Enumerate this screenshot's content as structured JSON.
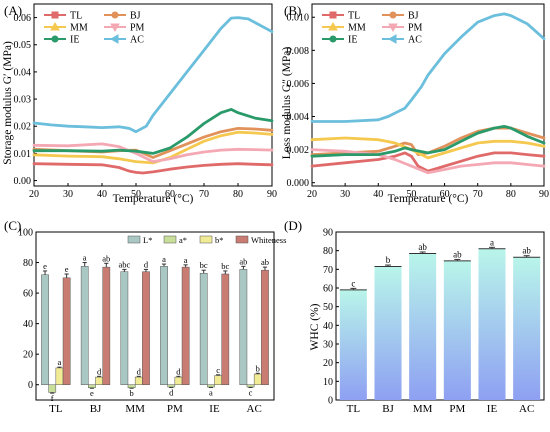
{
  "chart_data": [
    {
      "panel": "(A)",
      "type": "line",
      "xlabel": "Temperature (°C)",
      "ylabel": "Storage modulus G′ (MPa)",
      "xlim": [
        20,
        90
      ],
      "ylim": [
        -0.002,
        0.065
      ],
      "xticks": [
        "20",
        "30",
        "40",
        "50",
        "60",
        "70",
        "80",
        "90"
      ],
      "yticks": [
        "0.00",
        "0.01",
        "0.02",
        "0.03",
        "0.04",
        "0.05",
        "0.06"
      ],
      "legend": {
        "placement": "top-left",
        "columns": 2
      },
      "series": [
        {
          "name": "TL",
          "color": "#e06a6a",
          "marker": "square",
          "x": [
            20,
            30,
            40,
            45,
            48,
            50,
            52,
            55,
            60,
            65,
            70,
            75,
            80,
            85,
            90
          ],
          "y": [
            0.0062,
            0.006,
            0.0058,
            0.0048,
            0.0035,
            0.003,
            0.0028,
            0.0032,
            0.0042,
            0.005,
            0.0056,
            0.006,
            0.0062,
            0.006,
            0.0058
          ]
        },
        {
          "name": "BJ",
          "color": "#e0925a",
          "marker": "circle",
          "x": [
            20,
            30,
            40,
            45,
            50,
            55,
            60,
            65,
            70,
            75,
            80,
            85,
            90
          ],
          "y": [
            0.0115,
            0.011,
            0.0105,
            0.011,
            0.0112,
            0.0085,
            0.011,
            0.0135,
            0.016,
            0.018,
            0.0192,
            0.019,
            0.0185
          ]
        },
        {
          "name": "MM",
          "color": "#f5c84f",
          "marker": "triangle-up",
          "x": [
            20,
            30,
            40,
            45,
            50,
            55,
            60,
            65,
            70,
            75,
            80,
            85,
            90
          ],
          "y": [
            0.0095,
            0.009,
            0.0088,
            0.008,
            0.007,
            0.0065,
            0.0085,
            0.0115,
            0.0145,
            0.0165,
            0.0178,
            0.0175,
            0.017
          ]
        },
        {
          "name": "PM",
          "color": "#f4a8b4",
          "marker": "triangle-down",
          "x": [
            20,
            30,
            40,
            45,
            50,
            55,
            60,
            65,
            70,
            75,
            80,
            85,
            90
          ],
          "y": [
            0.013,
            0.0128,
            0.0135,
            0.0125,
            0.01,
            0.007,
            0.008,
            0.0095,
            0.0105,
            0.0112,
            0.0115,
            0.0114,
            0.0112
          ]
        },
        {
          "name": "IE",
          "color": "#2a9a6a",
          "marker": "circle",
          "x": [
            20,
            30,
            40,
            45,
            50,
            55,
            60,
            65,
            70,
            75,
            78,
            80,
            85,
            90
          ],
          "y": [
            0.011,
            0.011,
            0.0108,
            0.0112,
            0.0108,
            0.01,
            0.012,
            0.016,
            0.021,
            0.025,
            0.0262,
            0.025,
            0.023,
            0.022
          ]
        },
        {
          "name": "AC",
          "color": "#6bbfdc",
          "marker": "triangle-left",
          "x": [
            20,
            25,
            30,
            35,
            40,
            45,
            48,
            50,
            53,
            55,
            60,
            65,
            70,
            75,
            78,
            80,
            83,
            86,
            90
          ],
          "y": [
            0.0212,
            0.0205,
            0.02,
            0.0198,
            0.0195,
            0.0198,
            0.0192,
            0.018,
            0.02,
            0.024,
            0.032,
            0.04,
            0.048,
            0.056,
            0.0598,
            0.06,
            0.0595,
            0.0575,
            0.0548
          ]
        }
      ]
    },
    {
      "panel": "(B)",
      "type": "line",
      "xlabel": "Temperature (°C)",
      "ylabel": "Loss modulus G″ (MPa)",
      "xlim": [
        20,
        90
      ],
      "ylim": [
        -0.0002,
        0.0108
      ],
      "xticks": [
        "20",
        "30",
        "40",
        "50",
        "60",
        "70",
        "80",
        "90"
      ],
      "yticks": [
        "0.000",
        "0.002",
        "0.004",
        "0.006",
        "0.008",
        "0.010"
      ],
      "legend": {
        "placement": "top-left",
        "columns": 2
      },
      "series": [
        {
          "name": "TL",
          "color": "#e06a6a",
          "marker": "square",
          "x": [
            20,
            30,
            40,
            45,
            48,
            50,
            52,
            55,
            60,
            65,
            70,
            75,
            80,
            85,
            90
          ],
          "y": [
            0.001,
            0.0012,
            0.0014,
            0.0016,
            0.0018,
            0.0016,
            0.001,
            0.0007,
            0.001,
            0.0013,
            0.0016,
            0.0018,
            0.0018,
            0.0017,
            0.0016
          ]
        },
        {
          "name": "BJ",
          "color": "#e0925a",
          "marker": "circle",
          "x": [
            20,
            30,
            40,
            45,
            48,
            50,
            52,
            55,
            60,
            65,
            70,
            75,
            80,
            85,
            90
          ],
          "y": [
            0.0017,
            0.0018,
            0.0019,
            0.0022,
            0.0024,
            0.0023,
            0.0017,
            0.0018,
            0.0022,
            0.0027,
            0.0031,
            0.0033,
            0.0033,
            0.003,
            0.0027
          ]
        },
        {
          "name": "MM",
          "color": "#f5c84f",
          "marker": "triangle-up",
          "x": [
            20,
            30,
            40,
            45,
            50,
            55,
            60,
            65,
            70,
            75,
            80,
            85,
            90
          ],
          "y": [
            0.0026,
            0.0027,
            0.0026,
            0.0024,
            0.002,
            0.0015,
            0.0018,
            0.0021,
            0.0024,
            0.0025,
            0.0025,
            0.0024,
            0.0022
          ]
        },
        {
          "name": "PM",
          "color": "#f4a8b4",
          "marker": "triangle-down",
          "x": [
            20,
            30,
            40,
            45,
            50,
            55,
            60,
            65,
            70,
            75,
            80,
            85,
            90
          ],
          "y": [
            0.002,
            0.0019,
            0.0017,
            0.0014,
            0.001,
            0.0006,
            0.0008,
            0.001,
            0.0011,
            0.0012,
            0.0012,
            0.0011,
            0.001
          ]
        },
        {
          "name": "IE",
          "color": "#2a9a6a",
          "marker": "circle",
          "x": [
            20,
            30,
            40,
            45,
            48,
            50,
            55,
            60,
            65,
            70,
            75,
            78,
            80,
            85,
            90
          ],
          "y": [
            0.0016,
            0.0017,
            0.0017,
            0.0019,
            0.0021,
            0.002,
            0.0018,
            0.002,
            0.0025,
            0.003,
            0.0033,
            0.0034,
            0.0033,
            0.0028,
            0.0024
          ]
        },
        {
          "name": "AC",
          "color": "#6bbfdc",
          "marker": "triangle-left",
          "x": [
            20,
            30,
            40,
            43,
            46,
            48,
            50,
            53,
            55,
            60,
            65,
            70,
            75,
            78,
            80,
            85,
            90
          ],
          "y": [
            0.0037,
            0.0037,
            0.0038,
            0.004,
            0.0043,
            0.0045,
            0.005,
            0.0058,
            0.0065,
            0.0078,
            0.0088,
            0.0097,
            0.0101,
            0.0102,
            0.0101,
            0.0096,
            0.0087
          ]
        }
      ]
    },
    {
      "panel": "(C)",
      "type": "bar",
      "categories": [
        "TL",
        "BJ",
        "MM",
        "PM",
        "IE",
        "AC"
      ],
      "ylim": [
        -10,
        100
      ],
      "yticks": [
        "0",
        "20",
        "40",
        "60",
        "80",
        "100"
      ],
      "legend": {
        "placement": "top",
        "columns": 4
      },
      "series": [
        {
          "name": "L*",
          "color": "#a9c8c4",
          "values": [
            72,
            77.5,
            74,
            77.5,
            73,
            75.5
          ],
          "errors": [
            2.5,
            2.5,
            1.5,
            1.5,
            2,
            2
          ],
          "letters": [
            "e",
            "a",
            "abc",
            "a",
            "bc",
            "ab"
          ]
        },
        {
          "name": "a*",
          "color": "#c8df9a",
          "values": [
            -5,
            -2,
            -2,
            -1.5,
            -1.5,
            -1.5
          ],
          "errors": [
            0.5,
            0.3,
            0.3,
            0.3,
            0.3,
            0.3
          ],
          "letters": [
            "f",
            "e",
            "b",
            "d",
            "a",
            "c"
          ]
        },
        {
          "name": "b*",
          "color": "#f1eb95",
          "values": [
            11,
            5,
            5,
            5,
            6,
            7
          ],
          "errors": [
            0.5,
            0.5,
            0.5,
            0.5,
            0.5,
            0.5
          ],
          "letters": [
            "a",
            "d",
            "d",
            "d",
            "c",
            "b"
          ]
        },
        {
          "name": "Whiteness",
          "color": "#c97c71",
          "values": [
            70,
            77,
            74,
            77,
            72.5,
            75
          ],
          "errors": [
            2.5,
            2.5,
            1.5,
            1.5,
            2,
            2
          ],
          "letters": [
            "e",
            "ab",
            "d",
            "a",
            "bc",
            "ab"
          ]
        }
      ]
    },
    {
      "panel": "(D)",
      "type": "bar",
      "categories": [
        "TL",
        "BJ",
        "MM",
        "PM",
        "IE",
        "AC"
      ],
      "ylabel": "WHC (%)",
      "ylim": [
        0,
        90
      ],
      "yticks": [
        "0",
        "10",
        "20",
        "30",
        "40",
        "50",
        "60",
        "70",
        "80",
        "90"
      ],
      "values": [
        59,
        71.5,
        78.5,
        74.5,
        81,
        76.5
      ],
      "errors": [
        0.8,
        0.8,
        0.8,
        0.8,
        0.8,
        0.8
      ],
      "letters": [
        "c",
        "b",
        "ab",
        "ab",
        "a",
        "ab"
      ],
      "gradient": [
        "#8ea0f2",
        "#b9f5ea"
      ]
    }
  ]
}
